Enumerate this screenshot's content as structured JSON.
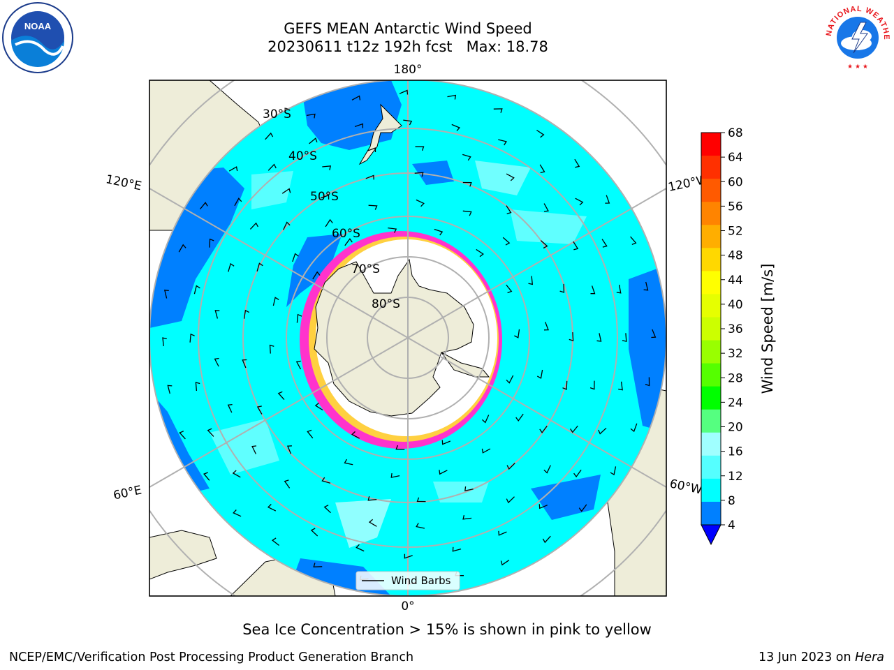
{
  "title": {
    "line1": "GEFS MEAN Antarctic Wind Speed",
    "line2": "20230611 t12z 192h fcst   Max: 18.78"
  },
  "logos": {
    "left": "noaa-logo",
    "left_text": "NOAA",
    "right": "nws-logo",
    "right_text": "NATIONAL WEATHER SERVICE"
  },
  "map": {
    "projection": "south-polar-stereographic",
    "longitude_labels": {
      "top": "180°",
      "bottom": "0°",
      "upper_left": "120°E",
      "upper_right": "120°W",
      "lower_left": "60°E",
      "lower_right": "60°W"
    },
    "latitude_labels": [
      "30°S",
      "40°S",
      "50°S",
      "60°S",
      "70°S",
      "80°S"
    ],
    "legend_label": "Wind Barbs",
    "colors": {
      "ocean_main": "#00ffff",
      "ocean_dark": "#0080ff",
      "ocean_light": "#a0ffff",
      "land": "#eeedd9",
      "sea_ice_pink": "#ff33cc",
      "sea_ice_yellow": "#ffd040",
      "grid": "#b0b0b0"
    }
  },
  "colorbar": {
    "label": "Wind Speed [m/s]",
    "ticks": [
      "68",
      "64",
      "60",
      "56",
      "52",
      "48",
      "44",
      "40",
      "36",
      "32",
      "28",
      "24",
      "20",
      "16",
      "12",
      "8",
      "4"
    ],
    "colors": [
      "#ff0000",
      "#ff3000",
      "#ff5a00",
      "#ff8400",
      "#ffae00",
      "#ffd800",
      "#ffff00",
      "#e6ff00",
      "#ccff00",
      "#99ff00",
      "#55ff00",
      "#00ff00",
      "#55ff80",
      "#a0ffff",
      "#55ffff",
      "#00ffff",
      "#0080ff"
    ],
    "extend_color": "#0000ff"
  },
  "caption": "Sea Ice Concentration > 15% is shown in pink to yellow",
  "footer": {
    "left": "NCEP/EMC/Verification Post Processing Product Generation Branch",
    "right_date": "13 Jun 2023 on ",
    "right_host": "Hera"
  }
}
